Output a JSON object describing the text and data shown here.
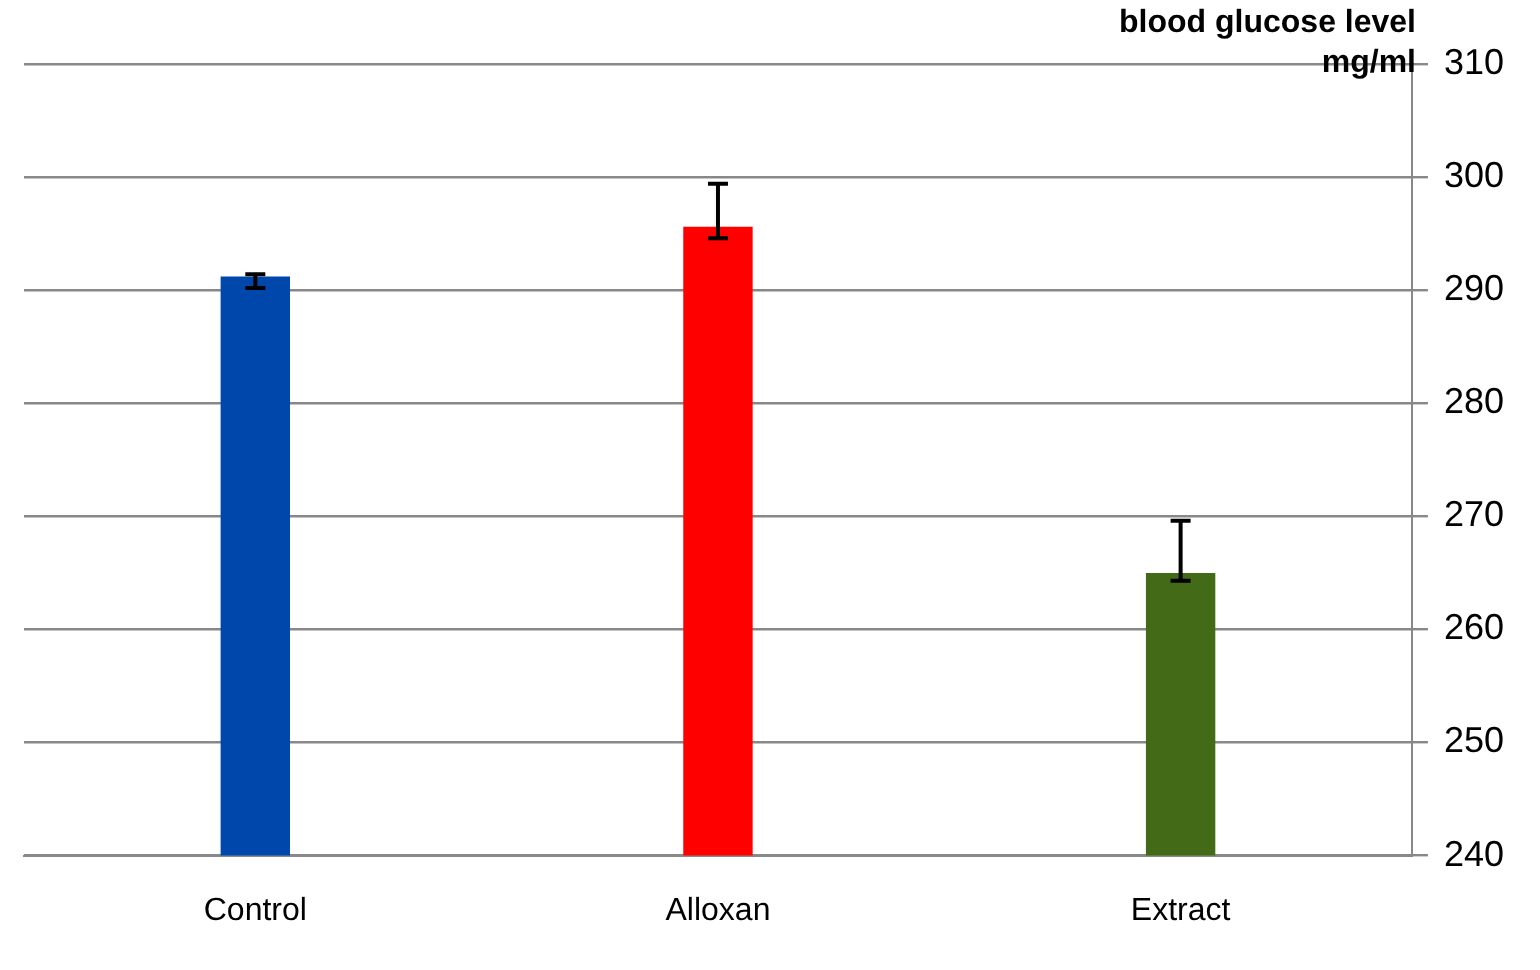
{
  "chart_data": {
    "type": "bar",
    "ylabel": "blood glucose level mg/ml",
    "categories": [
      "Control",
      "Alloxan",
      "Extract"
    ],
    "values": [
      291.2,
      295.6,
      265.0
    ],
    "colors": [
      "#0047ab",
      "#ff0000",
      "#436a17"
    ],
    "errors": [
      [
        290.2,
        291.4
      ],
      [
        294.6,
        299.4
      ],
      [
        264.3,
        269.6
      ]
    ],
    "ylim": [
      240,
      310
    ],
    "yticks": [
      240,
      250,
      260,
      270,
      280,
      290,
      300,
      310
    ],
    "grid": "y",
    "legend": false
  }
}
